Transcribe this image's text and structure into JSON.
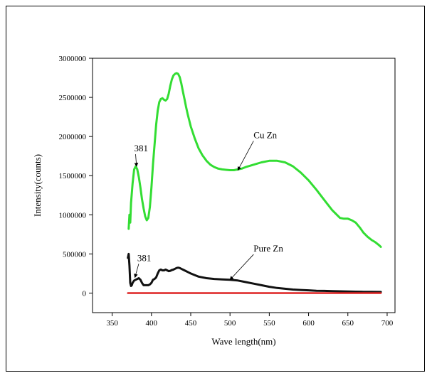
{
  "chart_data": {
    "type": "line",
    "title": "",
    "xlabel": "Wave length(nm)",
    "ylabel": "Intensity(counts)",
    "xlim": [
      325,
      710
    ],
    "ylim": [
      -250000,
      3000000
    ],
    "xticks": [
      350,
      400,
      450,
      500,
      550,
      600,
      650,
      700
    ],
    "yticks": [
      0,
      500000,
      1000000,
      1500000,
      2000000,
      2500000,
      3000000
    ],
    "series": [
      {
        "color": "#33dd33",
        "x": [
          371,
          372,
          373,
          374,
          376,
          378,
          380,
          382,
          384,
          386,
          388,
          390,
          392,
          394,
          396,
          398,
          400,
          402,
          404,
          406,
          408,
          410,
          412,
          414,
          416,
          418,
          420,
          422,
          424,
          426,
          428,
          430,
          432,
          434,
          436,
          438,
          440,
          442,
          444,
          446,
          448,
          450,
          455,
          460,
          465,
          470,
          475,
          480,
          485,
          490,
          495,
          500,
          505,
          510,
          515,
          520,
          530,
          540,
          550,
          560,
          570,
          580,
          590,
          600,
          610,
          620,
          630,
          640,
          645,
          650,
          655,
          660,
          665,
          670,
          675,
          680,
          685,
          690,
          692
        ],
        "y": [
          820000,
          1000000,
          900000,
          1150000,
          1400000,
          1580000,
          1620000,
          1580000,
          1480000,
          1350000,
          1200000,
          1080000,
          980000,
          930000,
          960000,
          1100000,
          1350000,
          1650000,
          1900000,
          2150000,
          2330000,
          2440000,
          2480000,
          2490000,
          2470000,
          2460000,
          2480000,
          2550000,
          2650000,
          2730000,
          2780000,
          2800000,
          2810000,
          2800000,
          2760000,
          2680000,
          2580000,
          2480000,
          2380000,
          2290000,
          2210000,
          2130000,
          1980000,
          1850000,
          1760000,
          1690000,
          1640000,
          1610000,
          1590000,
          1580000,
          1575000,
          1570000,
          1570000,
          1580000,
          1590000,
          1610000,
          1640000,
          1670000,
          1690000,
          1690000,
          1670000,
          1620000,
          1540000,
          1440000,
          1320000,
          1190000,
          1060000,
          960000,
          950000,
          950000,
          930000,
          900000,
          840000,
          770000,
          720000,
          680000,
          650000,
          610000,
          590000
        ]
      },
      {
        "color": "#111111",
        "x": [
          370,
          371,
          372,
          373,
          374,
          375,
          376,
          378,
          380,
          382,
          384,
          386,
          388,
          390,
          392,
          394,
          396,
          398,
          400,
          402,
          404,
          406,
          408,
          410,
          412,
          414,
          416,
          418,
          420,
          422,
          424,
          426,
          428,
          430,
          432,
          434,
          436,
          438,
          440,
          442,
          444,
          446,
          448,
          450,
          455,
          460,
          470,
          480,
          490,
          500,
          510,
          520,
          530,
          540,
          550,
          560,
          570,
          580,
          590,
          600,
          610,
          620,
          630,
          640,
          650,
          660,
          670,
          680,
          690,
          692
        ],
        "y": [
          450000,
          500000,
          350000,
          130000,
          90000,
          100000,
          130000,
          160000,
          170000,
          180000,
          190000,
          170000,
          130000,
          100000,
          100000,
          100000,
          100000,
          110000,
          130000,
          170000,
          180000,
          200000,
          250000,
          290000,
          300000,
          290000,
          290000,
          300000,
          290000,
          280000,
          285000,
          295000,
          300000,
          310000,
          320000,
          325000,
          320000,
          310000,
          300000,
          290000,
          280000,
          270000,
          260000,
          250000,
          230000,
          210000,
          190000,
          180000,
          175000,
          170000,
          160000,
          140000,
          120000,
          100000,
          80000,
          65000,
          55000,
          45000,
          40000,
          35000,
          30000,
          28000,
          25000,
          22000,
          20000,
          18000,
          16000,
          15000,
          14000,
          14000
        ]
      },
      {
        "color": "#dd2222",
        "x": [
          370,
          692
        ],
        "y": [
          0,
          0
        ]
      }
    ],
    "annotations": [
      {
        "text": "381",
        "x": 378,
        "y": 1810000,
        "arrow_to": [
          381,
          1620000
        ]
      },
      {
        "text": "Cu Zn",
        "x": 530,
        "y": 1980000,
        "arrow_to": [
          510,
          1570000
        ]
      },
      {
        "text": "381",
        "x": 382,
        "y": 410000,
        "arrow_to": [
          379,
          200000
        ]
      },
      {
        "text": "Pure Zn",
        "x": 530,
        "y": 530000,
        "arrow_to": [
          500,
          170000
        ]
      }
    ]
  }
}
